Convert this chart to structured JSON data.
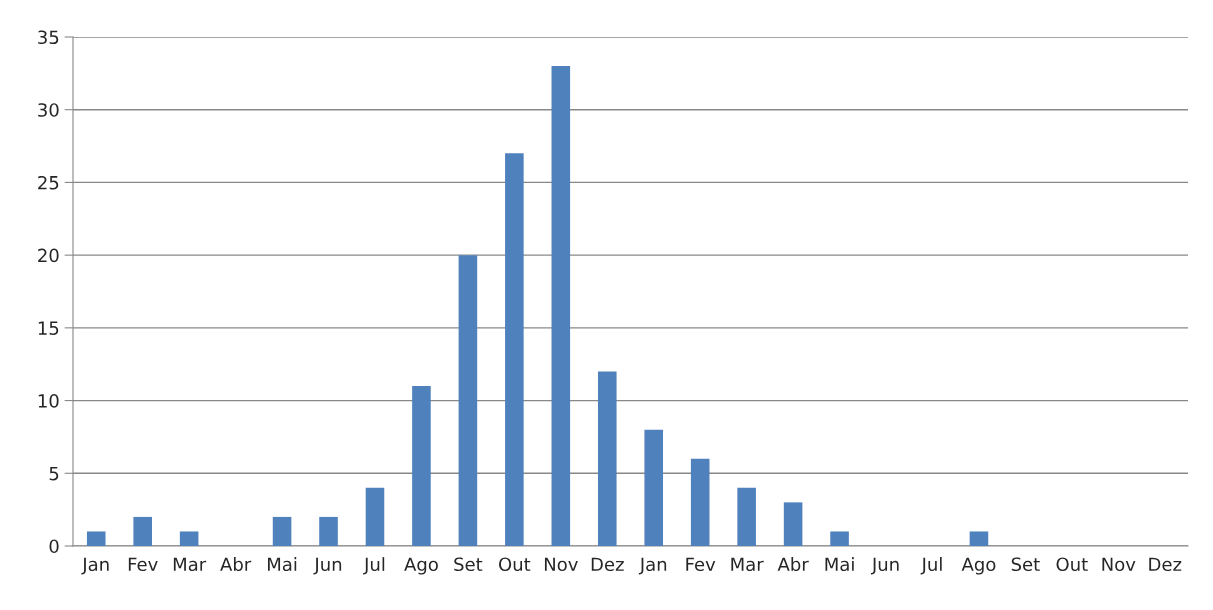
{
  "chart_data": {
    "type": "bar",
    "categories": [
      "Jan",
      "Fev",
      "Mar",
      "Abr",
      "Mai",
      "Jun",
      "Jul",
      "Ago",
      "Set",
      "Out",
      "Nov",
      "Dez",
      "Jan",
      "Fev",
      "Mar",
      "Abr",
      "Mai",
      "Jun",
      "Jul",
      "Ago",
      "Set",
      "Out",
      "Nov",
      "Dez"
    ],
    "values": [
      1,
      2,
      1,
      0,
      2,
      2,
      4,
      11,
      20,
      27,
      33,
      12,
      8,
      6,
      4,
      3,
      1,
      0,
      0,
      1,
      0,
      0,
      0,
      0
    ],
    "color": "#4f81bd",
    "ylim": [
      0,
      35
    ],
    "yticks": [
      0,
      5,
      10,
      15,
      20,
      25,
      30,
      35
    ],
    "grid": "y",
    "legend": false
  }
}
